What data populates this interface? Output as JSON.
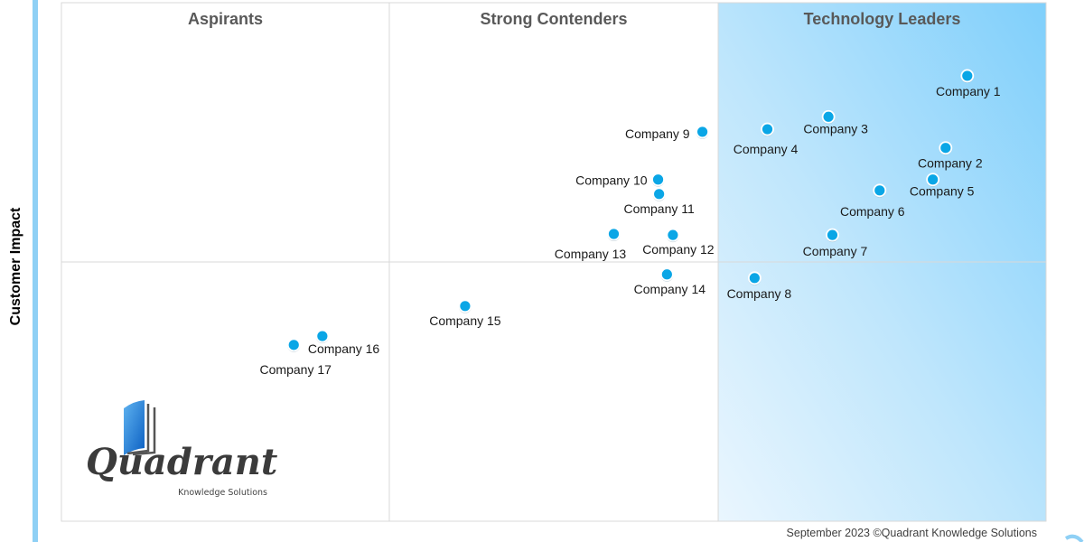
{
  "chart_data": {
    "type": "scatter",
    "title": "",
    "xlabel": "",
    "ylabel": "Customer Impact",
    "xlim": [
      0,
      10
    ],
    "ylim": [
      0,
      10
    ],
    "grid": false,
    "quadrant_dividers": {
      "x": [
        3.33,
        6.67
      ],
      "y": [
        5.0
      ]
    },
    "quadrants": [
      {
        "name": "Aspirants"
      },
      {
        "name": "Strong Contenders"
      },
      {
        "name": "Technology Leaders",
        "fill": "#8ed6fb"
      }
    ],
    "point_color": "#0aa6e6",
    "points": [
      {
        "label": "Company 1",
        "x": 9.2,
        "y": 8.59
      },
      {
        "label": "Company 2",
        "x": 8.98,
        "y": 7.2
      },
      {
        "label": "Company 3",
        "x": 7.79,
        "y": 7.8
      },
      {
        "label": "Company 4",
        "x": 7.17,
        "y": 7.56
      },
      {
        "label": "Company 5",
        "x": 8.85,
        "y": 6.59
      },
      {
        "label": "Company 6",
        "x": 8.31,
        "y": 6.38
      },
      {
        "label": "Company 7",
        "x": 7.83,
        "y": 5.52
      },
      {
        "label": "Company 8",
        "x": 7.04,
        "y": 4.69
      },
      {
        "label": "Company 9",
        "x": 6.51,
        "y": 7.51
      },
      {
        "label": "Company 10",
        "x": 6.06,
        "y": 6.59
      },
      {
        "label": "Company 11",
        "x": 6.07,
        "y": 6.31
      },
      {
        "label": "Company 12",
        "x": 6.21,
        "y": 5.52
      },
      {
        "label": "Company 13",
        "x": 5.61,
        "y": 5.54
      },
      {
        "label": "Company 14",
        "x": 6.15,
        "y": 4.76
      },
      {
        "label": "Company 15",
        "x": 4.1,
        "y": 4.15
      },
      {
        "label": "Company 16",
        "x": 2.65,
        "y": 3.57
      },
      {
        "label": "Company 17",
        "x": 2.36,
        "y": 3.4
      }
    ]
  },
  "logo": {
    "name": "Quadrant",
    "tagline": "Knowledge Solutions"
  },
  "footer": "September 2023 ©Quadrant Knowledge Solutions"
}
